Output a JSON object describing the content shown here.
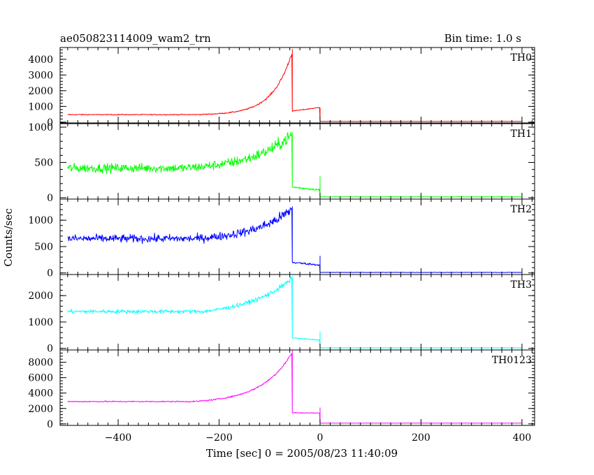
{
  "chart_data": {
    "type": "line",
    "title_left": "ae050823114009_wam2_trn",
    "title_right": "Bin time: 1.0 s",
    "xlabel": "Time [sec] 0 = 2005/08/23 11:40:09",
    "ylabel": "Counts/sec",
    "xlim": [
      -515,
      425
    ],
    "x_ticks": [
      -400,
      -200,
      0,
      200,
      400
    ],
    "x_tick_labels": [
      "−400",
      "−200",
      "0",
      "200",
      "400"
    ],
    "grid": false,
    "panels": [
      {
        "name": "TH0",
        "color": "#ff0000",
        "ylim": [
          -50,
          4750
        ],
        "y_ticks": [
          0,
          1000,
          2000,
          3000,
          4000
        ],
        "y_tick_labels": [
          "0",
          "1000",
          "2000",
          "3000",
          "4000"
        ],
        "baseline": 480,
        "peak": 4500,
        "rise_start": -250,
        "rise_tau": 38,
        "noise": 0.015,
        "noise_abs": 15,
        "x_drop": -55,
        "plateau_start": 700,
        "plateau_end": 940,
        "spike": 900,
        "tail": 50
      },
      {
        "name": "TH1",
        "color": "#00ff00",
        "ylim": [
          -20,
          1050
        ],
        "y_ticks": [
          0,
          500,
          1000
        ],
        "y_tick_labels": [
          "0",
          "500",
          "1000"
        ],
        "baseline": 420,
        "peak": 900,
        "rise_start": -270,
        "rise_tau": 80,
        "noise": 0.05,
        "noise_abs": 25,
        "x_drop": -55,
        "plateau_start": 150,
        "plateau_end": 110,
        "spike": 300,
        "tail": 12
      },
      {
        "name": "TH2",
        "color": "#0000ff",
        "ylim": [
          -30,
          1400
        ],
        "y_ticks": [
          0,
          500,
          1000
        ],
        "y_tick_labels": [
          "0",
          "500",
          "1000"
        ],
        "baseline": 650,
        "peak": 1220,
        "rise_start": -250,
        "rise_tau": 75,
        "noise": 0.045,
        "noise_abs": 25,
        "x_drop": -55,
        "plateau_start": 200,
        "plateau_end": 150,
        "spike": 320,
        "tail": 10
      },
      {
        "name": "TH3",
        "color": "#00ffff",
        "ylim": [
          -60,
          2800
        ],
        "y_ticks": [
          0,
          1000,
          2000
        ],
        "y_tick_labels": [
          "0",
          "1000",
          "2000"
        ],
        "baseline": 1400,
        "peak": 2650,
        "rise_start": -230,
        "rise_tau": 90,
        "noise": 0.022,
        "noise_abs": 20,
        "x_drop": -55,
        "plateau_start": 400,
        "plateau_end": 310,
        "spike": 630,
        "tail": 20
      },
      {
        "name": "TH0123",
        "color": "#ff00ff",
        "ylim": [
          -200,
          9600
        ],
        "y_ticks": [
          0,
          2000,
          4000,
          6000,
          8000
        ],
        "y_tick_labels": [
          "0",
          "2000",
          "4000",
          "6000",
          "8000"
        ],
        "baseline": 2900,
        "peak": 9300,
        "rise_start": -250,
        "rise_tau": 60,
        "noise": 0.01,
        "noise_abs": 30,
        "x_drop": -55,
        "plateau_start": 1450,
        "plateau_end": 1400,
        "spike": 2100,
        "tail": 90
      }
    ]
  }
}
